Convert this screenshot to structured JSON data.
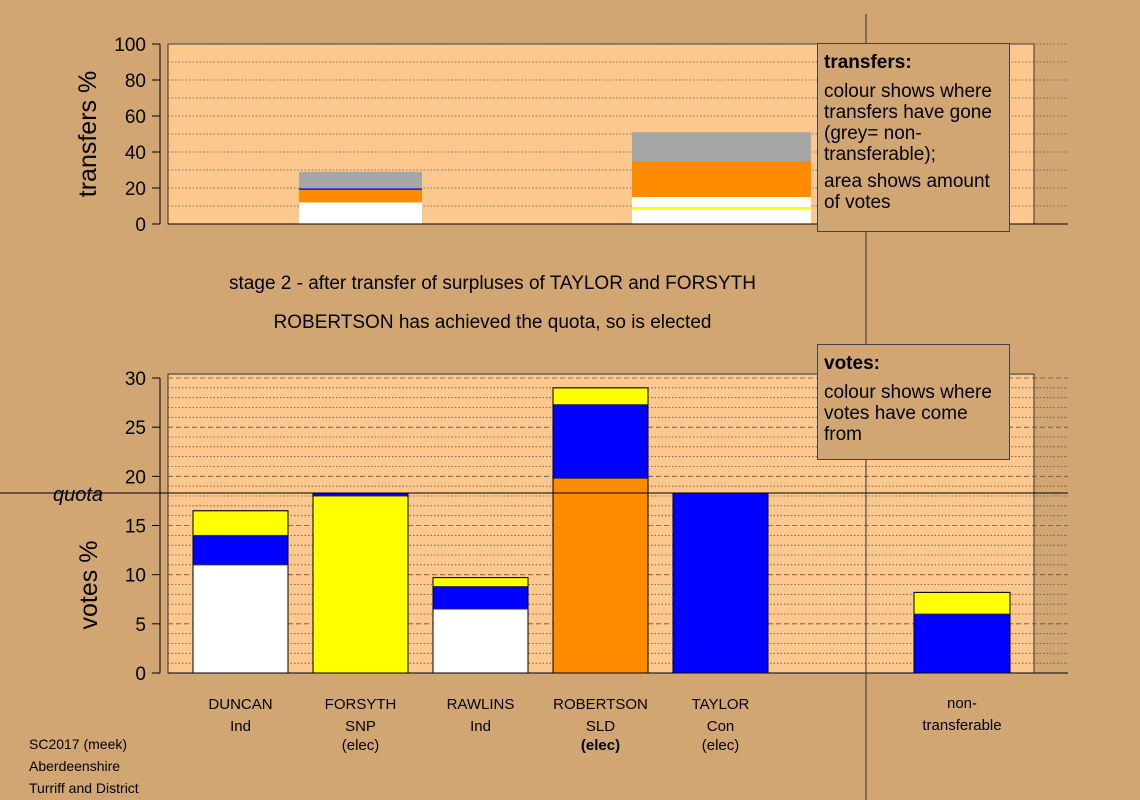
{
  "chart_data": [
    {
      "type": "bar",
      "stacked": true,
      "ylabel": "transfers %",
      "ylim": [
        0,
        100
      ],
      "yticks": [
        0,
        20,
        40,
        60,
        80,
        100
      ],
      "grid": "dotted, every 10",
      "bars": [
        {
          "id": "taylor-transfer",
          "segments": [
            {
              "color": "#ffffff",
              "value": 12
            },
            {
              "color": "#ff8c00",
              "value": 7
            },
            {
              "color": "#0000ff",
              "value": 0.8
            },
            {
              "color": "#a6a6a6",
              "value": 9.2
            }
          ]
        },
        {
          "id": "forsyth-transfer",
          "segments": [
            {
              "color": "#ffffff",
              "value": 8
            },
            {
              "color": "#ffff00",
              "value": 1.5
            },
            {
              "color": "#ffffff",
              "value": 5.5
            },
            {
              "color": "#ff8c00",
              "value": 20
            },
            {
              "color": "#a6a6a6",
              "value": 16
            }
          ]
        }
      ]
    },
    {
      "type": "bar",
      "stacked": true,
      "ylabel": "votes %",
      "ylim": [
        0,
        30
      ],
      "yticks": [
        0,
        5,
        10,
        15,
        20,
        25,
        30
      ],
      "quota": 18.3,
      "quota_label": "quota",
      "grid": "dashed every 5, dotted every 1",
      "categories": [
        {
          "name": "DUNCAN",
          "party": "Ind",
          "status": ""
        },
        {
          "name": "FORSYTH",
          "party": "SNP",
          "status": "(elec)"
        },
        {
          "name": "RAWLINS",
          "party": "Ind",
          "status": ""
        },
        {
          "name": "ROBERTSON",
          "party": "SLD",
          "status": "(elec)"
        },
        {
          "name": "TAYLOR",
          "party": "Con",
          "status": "(elec)"
        }
      ],
      "bars": [
        {
          "segments": [
            {
              "color": "#ffffff",
              "value": 11
            },
            {
              "color": "#0000ff",
              "value": 3
            },
            {
              "color": "#ffff00",
              "value": 2.5
            }
          ]
        },
        {
          "segments": [
            {
              "color": "#ffff00",
              "value": 18
            },
            {
              "color": "#0000ff",
              "value": 0.3
            }
          ]
        },
        {
          "segments": [
            {
              "color": "#ffffff",
              "value": 6.5
            },
            {
              "color": "#0000ff",
              "value": 2.3
            },
            {
              "color": "#ffff00",
              "value": 0.9
            }
          ]
        },
        {
          "segments": [
            {
              "color": "#ff8c00",
              "value": 19.8
            },
            {
              "color": "#0000ff",
              "value": 7.5
            },
            {
              "color": "#ffff00",
              "value": 1.7
            }
          ]
        },
        {
          "segments": [
            {
              "color": "#0000ff",
              "value": 18.3
            }
          ]
        }
      ],
      "non_transferable": {
        "label_line1": "non-",
        "label_line2": "transferable",
        "segments": [
          {
            "color": "#0000ff",
            "value": 6
          },
          {
            "color": "#ffff00",
            "value": 2.2
          }
        ]
      }
    }
  ],
  "legend_transfers": {
    "title": "transfers:",
    "p1": "colour shows where transfers have gone (grey= non-transferable);",
    "p2": "area shows amount of votes"
  },
  "legend_votes": {
    "title": "votes:",
    "p1": "colour shows where votes have come from"
  },
  "stage_text": "stage 2 - after transfer of surpluses of TAYLOR and FORSYTH",
  "elected_text": "ROBERTSON has achieved the quota, so is elected",
  "footer": {
    "line1": "SC2017 (meek)",
    "line2": "Aberdeenshire",
    "line3": "Turriff and District"
  },
  "colors": {
    "background": "#d2a673",
    "plot_area": "#fcc88e",
    "white": "#ffffff",
    "orange": "#ff8c00",
    "blue": "#0000ff",
    "yellow": "#ffff00",
    "grey": "#a6a6a6"
  }
}
